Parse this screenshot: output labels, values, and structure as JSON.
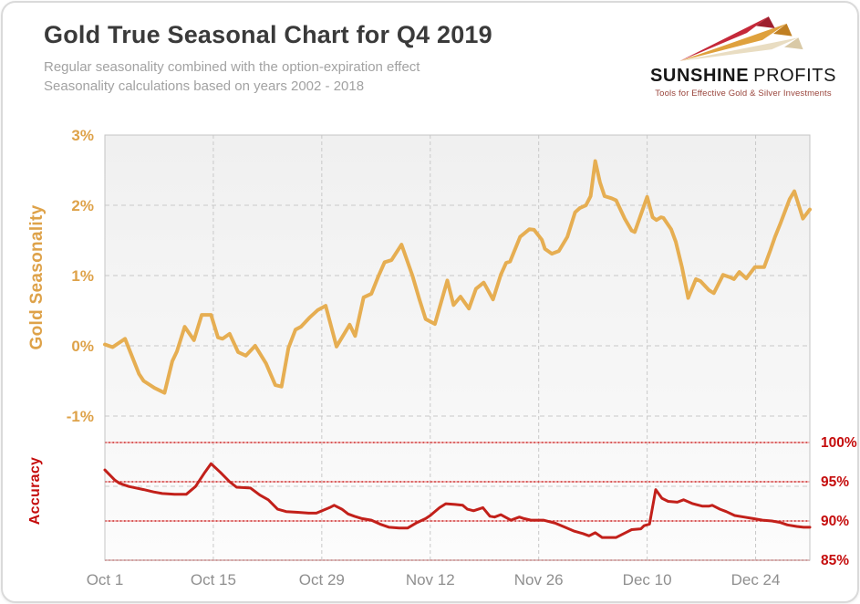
{
  "header": {
    "title": "Gold True Seasonal Chart for Q4 2019",
    "subtitle_line1": "Regular seasonality combined with the option-expiration effect",
    "subtitle_line2": "Seasonality calculations based on years 2002 - 2018"
  },
  "logo": {
    "name_bold": "SUNSHINE",
    "name_light": "PROFITS",
    "tagline": "Tools for Effective Gold & Silver Investments",
    "colors": {
      "arrow_red": "#c5293a",
      "arrow_gold": "#dfa13d",
      "arrow_beige": "#e9ddc2"
    }
  },
  "chart_data": {
    "type": "line",
    "title": "Gold True Seasonal Chart for Q4 2019",
    "legend": "none",
    "grid": "on",
    "x_axis": {
      "labels": [
        "Oct 1",
        "Oct 15",
        "Oct 29",
        "Nov 12",
        "Nov 26",
        "Dec 10",
        "Dec 24"
      ],
      "label_days": [
        0,
        14,
        28,
        42,
        56,
        70,
        84
      ],
      "range_days": [
        0,
        91
      ],
      "label_color": "#8f8f8f"
    },
    "left_axis": {
      "title": "Gold Seasonality",
      "ticks": [
        "3%",
        "2%",
        "1%",
        "0%",
        "-1%"
      ],
      "tick_values": [
        3,
        2,
        1,
        0,
        -1
      ],
      "range": [
        -2,
        3
      ],
      "color": "#dea249"
    },
    "right_axis": {
      "title": "Accuracy",
      "ticks": [
        "100%",
        "95%",
        "90%",
        "85%"
      ],
      "tick_values": [
        100,
        95,
        90,
        85
      ],
      "range": [
        85,
        100
      ],
      "color": "#c50d0d"
    },
    "gridlines": {
      "horizontal_left_values": [
        2,
        1,
        0,
        -1,
        -2
      ],
      "horizontal_right_values": [
        100,
        95,
        90,
        85
      ],
      "vertical_days": [
        14,
        28,
        42,
        56,
        70,
        84
      ]
    },
    "series": [
      {
        "name": "Gold Seasonality",
        "axis": "left",
        "unit": "%",
        "color": "#e6ae52",
        "line_width": 4,
        "points": [
          [
            0,
            0.02
          ],
          [
            1,
            -0.02
          ],
          [
            2.6,
            0.1
          ],
          [
            4.4,
            -0.4
          ],
          [
            5,
            -0.5
          ],
          [
            6.4,
            -0.6
          ],
          [
            7.7,
            -0.67
          ],
          [
            8.7,
            -0.22
          ],
          [
            9.3,
            -0.08
          ],
          [
            10.3,
            0.27
          ],
          [
            11.5,
            0.08
          ],
          [
            12.5,
            0.44
          ],
          [
            13.7,
            0.44
          ],
          [
            14.6,
            0.12
          ],
          [
            15.2,
            0.1
          ],
          [
            16.1,
            0.17
          ],
          [
            17.2,
            -0.09
          ],
          [
            18.2,
            -0.14
          ],
          [
            19.4,
            0
          ],
          [
            20.8,
            -0.25
          ],
          [
            22,
            -0.56
          ],
          [
            22.8,
            -0.58
          ],
          [
            23.7,
            -0.03
          ],
          [
            24.6,
            0.23
          ],
          [
            25.3,
            0.27
          ],
          [
            26.4,
            0.4
          ],
          [
            27.5,
            0.51
          ],
          [
            28.5,
            0.57
          ],
          [
            29.9,
            -0.01
          ],
          [
            31.6,
            0.3
          ],
          [
            32.3,
            0.14
          ],
          [
            33.4,
            0.69
          ],
          [
            34.4,
            0.74
          ],
          [
            35.3,
            0.99
          ],
          [
            36.1,
            1.19
          ],
          [
            37,
            1.22
          ],
          [
            38.3,
            1.44
          ],
          [
            39.7,
            1
          ],
          [
            40.6,
            0.66
          ],
          [
            41.4,
            0.38
          ],
          [
            42.6,
            0.31
          ],
          [
            44.2,
            0.93
          ],
          [
            45,
            0.58
          ],
          [
            45.9,
            0.7
          ],
          [
            47,
            0.53
          ],
          [
            47.9,
            0.81
          ],
          [
            48.9,
            0.9
          ],
          [
            50.1,
            0.66
          ],
          [
            51.1,
            1.01
          ],
          [
            51.8,
            1.18
          ],
          [
            52.3,
            1.2
          ],
          [
            53.6,
            1.55
          ],
          [
            54.8,
            1.66
          ],
          [
            55.4,
            1.65
          ],
          [
            56.4,
            1.51
          ],
          [
            56.8,
            1.38
          ],
          [
            57.7,
            1.31
          ],
          [
            58.6,
            1.35
          ],
          [
            59.7,
            1.55
          ],
          [
            60.7,
            1.9
          ],
          [
            61.3,
            1.96
          ],
          [
            62.1,
            2
          ],
          [
            62.7,
            2.13
          ],
          [
            63.3,
            2.63
          ],
          [
            63.9,
            2.33
          ],
          [
            64.5,
            2.13
          ],
          [
            65.4,
            2.1
          ],
          [
            66,
            2.07
          ],
          [
            67.1,
            1.81
          ],
          [
            68,
            1.64
          ],
          [
            68.4,
            1.62
          ],
          [
            70,
            2.12
          ],
          [
            70.7,
            1.83
          ],
          [
            71.2,
            1.79
          ],
          [
            71.8,
            1.83
          ],
          [
            72.1,
            1.82
          ],
          [
            73.1,
            1.66
          ],
          [
            73.7,
            1.48
          ],
          [
            74.5,
            1.12
          ],
          [
            75.3,
            0.68
          ],
          [
            76.3,
            0.95
          ],
          [
            76.9,
            0.92
          ],
          [
            78,
            0.79
          ],
          [
            78.6,
            0.75
          ],
          [
            79.8,
            1.01
          ],
          [
            80.8,
            0.97
          ],
          [
            81.2,
            0.95
          ],
          [
            81.9,
            1.05
          ],
          [
            82.8,
            0.96
          ],
          [
            83.9,
            1.12
          ],
          [
            85.1,
            1.12
          ],
          [
            85.9,
            1.36
          ],
          [
            86.5,
            1.55
          ],
          [
            87.2,
            1.74
          ],
          [
            88.4,
            2.09
          ],
          [
            89,
            2.2
          ],
          [
            89.8,
            1.92
          ],
          [
            90.1,
            1.81
          ],
          [
            91,
            1.94
          ]
        ]
      },
      {
        "name": "Accuracy",
        "axis": "right",
        "unit": "%",
        "color": "#c2201a",
        "line_width": 3,
        "points": [
          [
            0,
            96.5
          ],
          [
            1.3,
            95.2
          ],
          [
            1.9,
            94.8
          ],
          [
            3.1,
            94.4
          ],
          [
            5,
            94
          ],
          [
            6.3,
            93.7
          ],
          [
            7.4,
            93.5
          ],
          [
            9,
            93.4
          ],
          [
            10.5,
            93.4
          ],
          [
            11.7,
            94.4
          ],
          [
            12.9,
            96.2
          ],
          [
            13.7,
            97.3
          ],
          [
            14.9,
            96.2
          ],
          [
            16.1,
            95
          ],
          [
            17,
            94.3
          ],
          [
            18.8,
            94.2
          ],
          [
            20,
            93.3
          ],
          [
            21.1,
            92.7
          ],
          [
            22.3,
            91.5
          ],
          [
            23.4,
            91.2
          ],
          [
            24.9,
            91.1
          ],
          [
            26.3,
            91
          ],
          [
            27.3,
            91
          ],
          [
            29,
            91.7
          ],
          [
            29.6,
            92
          ],
          [
            30.6,
            91.5
          ],
          [
            31.4,
            90.9
          ],
          [
            32.2,
            90.6
          ],
          [
            33.2,
            90.3
          ],
          [
            34.4,
            90.1
          ],
          [
            35.5,
            89.6
          ],
          [
            36.7,
            89.2
          ],
          [
            38,
            89.1
          ],
          [
            39.1,
            89.1
          ],
          [
            40.3,
            89.8
          ],
          [
            41.4,
            90.3
          ],
          [
            42,
            90.7
          ],
          [
            43.2,
            91.7
          ],
          [
            44,
            92.2
          ],
          [
            45.2,
            92.1
          ],
          [
            46.2,
            92
          ],
          [
            46.8,
            91.5
          ],
          [
            47.6,
            91.3
          ],
          [
            48.8,
            91.7
          ],
          [
            49.7,
            90.6
          ],
          [
            50.3,
            90.5
          ],
          [
            51.1,
            90.8
          ],
          [
            52.4,
            90.1
          ],
          [
            53.5,
            90.5
          ],
          [
            54.1,
            90.3
          ],
          [
            55,
            90.1
          ],
          [
            56.6,
            90.1
          ],
          [
            58.2,
            89.7
          ],
          [
            59.4,
            89.2
          ],
          [
            60.6,
            88.7
          ],
          [
            61.7,
            88.4
          ],
          [
            62.5,
            88.1
          ],
          [
            63.3,
            88.5
          ],
          [
            64.2,
            87.9
          ],
          [
            65.2,
            87.9
          ],
          [
            66,
            87.9
          ],
          [
            67.2,
            88.5
          ],
          [
            68,
            88.9
          ],
          [
            69.2,
            89
          ],
          [
            69.6,
            89.4
          ],
          [
            70.3,
            89.6
          ],
          [
            71.1,
            94
          ],
          [
            71.9,
            92.9
          ],
          [
            72.7,
            92.5
          ],
          [
            73.9,
            92.4
          ],
          [
            74.7,
            92.7
          ],
          [
            75.9,
            92.2
          ],
          [
            77.1,
            91.9
          ],
          [
            78,
            91.9
          ],
          [
            78.4,
            92
          ],
          [
            79.4,
            91.5
          ],
          [
            80.2,
            91.2
          ],
          [
            81.3,
            90.7
          ],
          [
            82.5,
            90.5
          ],
          [
            83.7,
            90.3
          ],
          [
            84.9,
            90.1
          ],
          [
            86.1,
            90
          ],
          [
            87.2,
            89.8
          ],
          [
            88.1,
            89.5
          ],
          [
            89.3,
            89.3
          ],
          [
            90.2,
            89.2
          ],
          [
            91,
            89.2
          ]
        ]
      }
    ]
  }
}
